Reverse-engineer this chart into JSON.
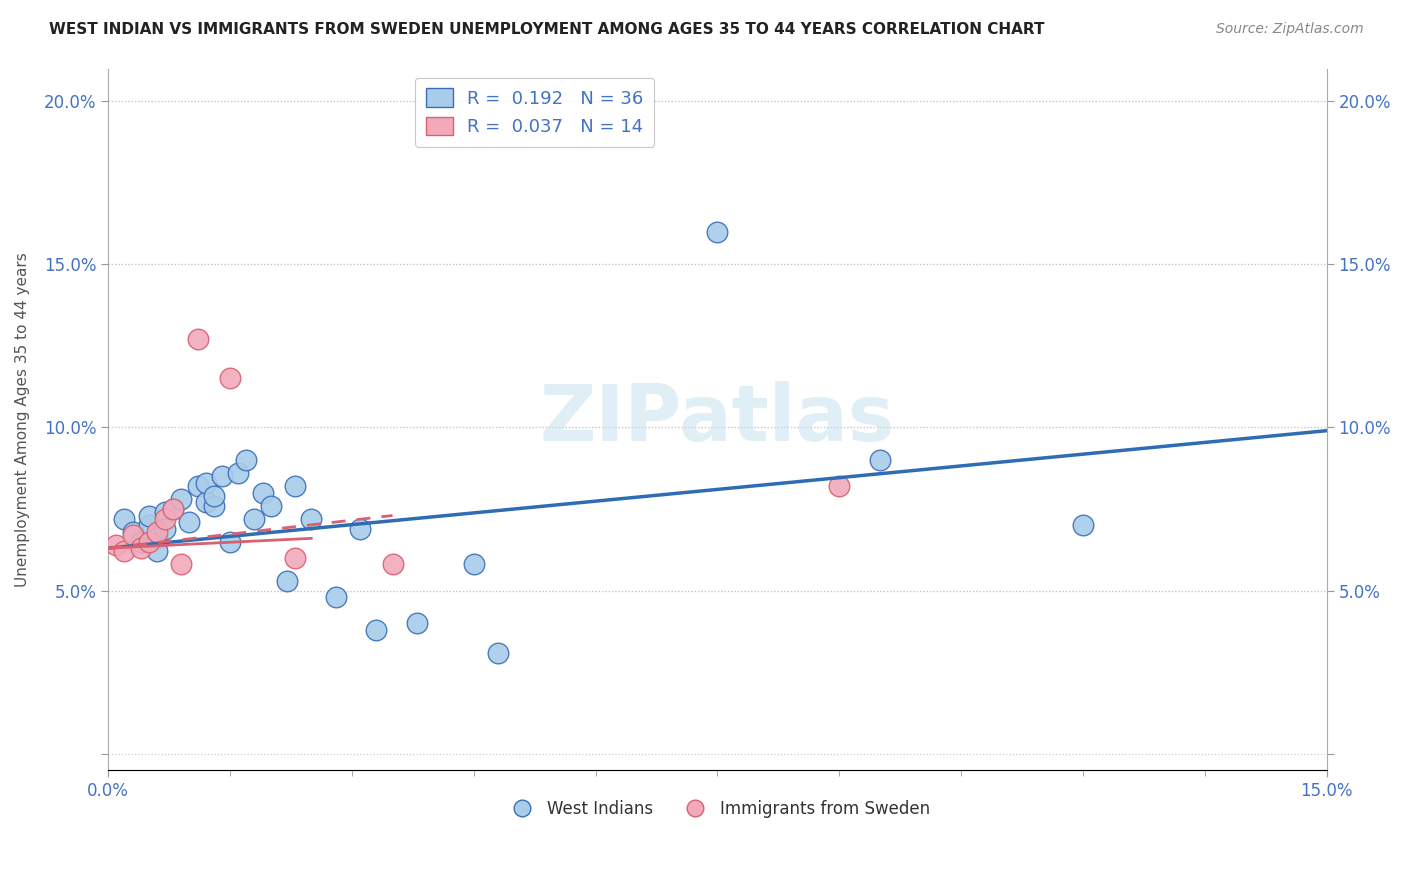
{
  "title": "WEST INDIAN VS IMMIGRANTS FROM SWEDEN UNEMPLOYMENT AMONG AGES 35 TO 44 YEARS CORRELATION CHART",
  "source": "Source: ZipAtlas.com",
  "ylabel": "Unemployment Among Ages 35 to 44 years",
  "xlim": [
    0.0,
    0.15
  ],
  "ylim": [
    -0.005,
    0.21
  ],
  "blue_R": "0.192",
  "blue_N": "36",
  "pink_R": "0.037",
  "pink_N": "14",
  "blue_color": "#A8CCEA",
  "pink_color": "#F2AABB",
  "blue_edge_color": "#3B6FB5",
  "pink_edge_color": "#D96070",
  "blue_line_color": "#2E6DB4",
  "pink_line_color": "#D96070",
  "watermark": "ZIPatlas",
  "blue_scatter_x": [
    0.002,
    0.003,
    0.004,
    0.005,
    0.005,
    0.006,
    0.006,
    0.007,
    0.007,
    0.008,
    0.009,
    0.01,
    0.011,
    0.012,
    0.012,
    0.013,
    0.013,
    0.014,
    0.015,
    0.016,
    0.017,
    0.018,
    0.019,
    0.02,
    0.022,
    0.023,
    0.025,
    0.028,
    0.031,
    0.033,
    0.038,
    0.045,
    0.048,
    0.075,
    0.095,
    0.12
  ],
  "blue_scatter_y": [
    0.072,
    0.068,
    0.065,
    0.07,
    0.073,
    0.066,
    0.062,
    0.074,
    0.069,
    0.075,
    0.078,
    0.071,
    0.082,
    0.077,
    0.083,
    0.076,
    0.079,
    0.085,
    0.065,
    0.086,
    0.09,
    0.072,
    0.08,
    0.076,
    0.053,
    0.082,
    0.072,
    0.048,
    0.069,
    0.038,
    0.04,
    0.058,
    0.031,
    0.16,
    0.09,
    0.07
  ],
  "pink_scatter_x": [
    0.001,
    0.002,
    0.003,
    0.004,
    0.005,
    0.006,
    0.007,
    0.008,
    0.009,
    0.011,
    0.015,
    0.023,
    0.035,
    0.09
  ],
  "pink_scatter_y": [
    0.064,
    0.062,
    0.067,
    0.063,
    0.065,
    0.068,
    0.072,
    0.075,
    0.058,
    0.127,
    0.115,
    0.06,
    0.058,
    0.082
  ],
  "blue_line_x": [
    0.0,
    0.15
  ],
  "blue_line_y": [
    0.063,
    0.099
  ],
  "pink_line_x": [
    0.0,
    0.035
  ],
  "pink_line_y": [
    0.063,
    0.073
  ]
}
